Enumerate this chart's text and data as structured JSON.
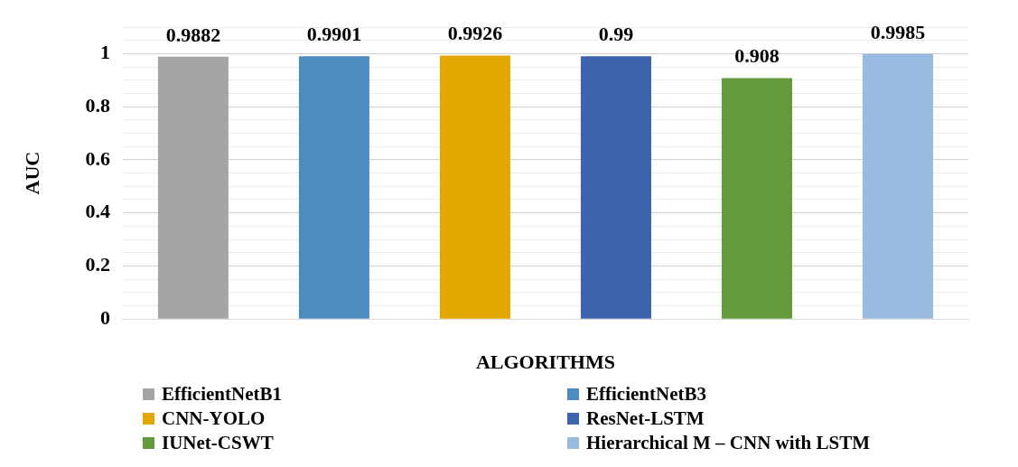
{
  "chart_data": {
    "type": "bar",
    "xlabel": "ALGORITHMS",
    "ylabel": "AUC",
    "categories": [
      null,
      null,
      null,
      null,
      null,
      null
    ],
    "series": [
      {
        "name": "EfficientNetB1",
        "color": "#a5a5a5",
        "values": [
          0.9882,
          null,
          null,
          null,
          null,
          null
        ]
      },
      {
        "name": "EfficientNetB3",
        "color": "#4e8bc0",
        "values": [
          null,
          0.9901,
          null,
          null,
          null,
          null
        ]
      },
      {
        "name": "CNN-YOLO",
        "color": "#e2a800",
        "values": [
          null,
          null,
          0.9926,
          null,
          null,
          null
        ]
      },
      {
        "name": "ResNet-LSTM",
        "color": "#3d64ad",
        "values": [
          null,
          null,
          null,
          0.99,
          null,
          null
        ]
      },
      {
        "name": "IUNet-CSWT",
        "color": "#629a3c",
        "values": [
          null,
          null,
          null,
          null,
          0.908,
          null
        ]
      },
      {
        "name": "Hierarchical M – CNN with LSTM",
        "color": "#9abbe0",
        "values": [
          null,
          null,
          null,
          null,
          null,
          0.9985
        ]
      }
    ],
    "ylim": [
      0,
      1.1
    ],
    "yticks": [
      0,
      {
        "value": 0.05,
        "label": null
      },
      {
        "value": 0.1,
        "label": null
      },
      {
        "value": 0.15,
        "label": null
      },
      0.2,
      {
        "value": 0.25,
        "label": null
      },
      {
        "value": 0.3,
        "label": null
      },
      {
        "value": 0.35,
        "label": null
      },
      0.4,
      {
        "value": 0.45,
        "label": null
      },
      {
        "value": 0.5,
        "label": null
      },
      {
        "value": 0.55,
        "label": null
      },
      0.6,
      {
        "value": 0.65,
        "label": null
      },
      {
        "value": 0.7,
        "label": null
      },
      {
        "value": 0.75,
        "label": null
      },
      0.8,
      {
        "value": 0.85,
        "label": null
      },
      {
        "value": 0.9,
        "label": null
      },
      {
        "value": 0.95,
        "label": null
      },
      1,
      {
        "value": 1.05,
        "label": null
      },
      {
        "value": 1.1,
        "label": null
      }
    ],
    "grid": "y",
    "legend": "bottom",
    "data_labels": true
  }
}
